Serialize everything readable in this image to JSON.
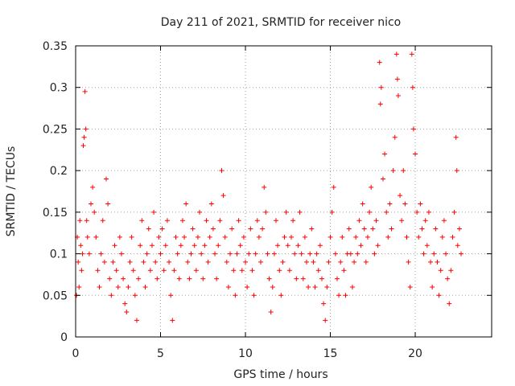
{
  "chart_data": {
    "type": "scatter",
    "title": "Day 211 of 2021, SRMTID for receiver nico",
    "xlabel": "GPS time / hours",
    "ylabel": "SRMTID / TECUs",
    "xlim": [
      0,
      24.5
    ],
    "ylim": [
      0,
      0.35
    ],
    "xticks": [
      0,
      5,
      10,
      15,
      20
    ],
    "xtick_labels": [
      "0",
      "5",
      "10",
      "15",
      "20"
    ],
    "yticks": [
      0,
      0.05,
      0.1,
      0.15,
      0.2,
      0.25,
      0.3,
      0.35
    ],
    "ytick_labels": [
      "0",
      "0.05",
      "0.1",
      "0.15",
      "0.2",
      "0.25",
      "0.3",
      "0.35"
    ],
    "grid": true,
    "marker": "+",
    "color": "#ff0000",
    "series": [
      {
        "name": "SRMTID",
        "points": [
          [
            0.05,
            0.05
          ],
          [
            0.1,
            0.12
          ],
          [
            0.15,
            0.09
          ],
          [
            0.2,
            0.06
          ],
          [
            0.25,
            0.14
          ],
          [
            0.3,
            0.11
          ],
          [
            0.35,
            0.08
          ],
          [
            0.4,
            0.1
          ],
          [
            0.45,
            0.23
          ],
          [
            0.5,
            0.24
          ],
          [
            0.55,
            0.295
          ],
          [
            0.6,
            0.25
          ],
          [
            0.65,
            0.14
          ],
          [
            0.7,
            0.12
          ],
          [
            0.8,
            0.1
          ],
          [
            0.9,
            0.16
          ],
          [
            1.0,
            0.18
          ],
          [
            1.1,
            0.15
          ],
          [
            1.2,
            0.12
          ],
          [
            1.3,
            0.08
          ],
          [
            1.4,
            0.06
          ],
          [
            1.5,
            0.1
          ],
          [
            1.6,
            0.14
          ],
          [
            1.7,
            0.09
          ],
          [
            1.8,
            0.19
          ],
          [
            1.9,
            0.16
          ],
          [
            2.0,
            0.07
          ],
          [
            2.1,
            0.05
          ],
          [
            2.2,
            0.09
          ],
          [
            2.3,
            0.11
          ],
          [
            2.4,
            0.08
          ],
          [
            2.5,
            0.06
          ],
          [
            2.6,
            0.12
          ],
          [
            2.7,
            0.1
          ],
          [
            2.8,
            0.07
          ],
          [
            2.9,
            0.04
          ],
          [
            3.0,
            0.03
          ],
          [
            3.1,
            0.06
          ],
          [
            3.2,
            0.09
          ],
          [
            3.3,
            0.12
          ],
          [
            3.4,
            0.08
          ],
          [
            3.5,
            0.05
          ],
          [
            3.6,
            0.02
          ],
          [
            3.7,
            0.07
          ],
          [
            3.8,
            0.11
          ],
          [
            3.9,
            0.14
          ],
          [
            4.0,
            0.09
          ],
          [
            4.1,
            0.06
          ],
          [
            4.2,
            0.1
          ],
          [
            4.3,
            0.13
          ],
          [
            4.4,
            0.08
          ],
          [
            4.5,
            0.11
          ],
          [
            4.6,
            0.15
          ],
          [
            4.7,
            0.09
          ],
          [
            4.8,
            0.07
          ],
          [
            4.9,
            0.12
          ],
          [
            5.0,
            0.1
          ],
          [
            5.1,
            0.13
          ],
          [
            5.2,
            0.08
          ],
          [
            5.3,
            0.11
          ],
          [
            5.4,
            0.14
          ],
          [
            5.5,
            0.09
          ],
          [
            5.6,
            0.05
          ],
          [
            5.7,
            0.02
          ],
          [
            5.8,
            0.08
          ],
          [
            5.9,
            0.12
          ],
          [
            6.0,
            0.1
          ],
          [
            6.1,
            0.07
          ],
          [
            6.2,
            0.11
          ],
          [
            6.3,
            0.14
          ],
          [
            6.4,
            0.12
          ],
          [
            6.5,
            0.16
          ],
          [
            6.6,
            0.09
          ],
          [
            6.7,
            0.07
          ],
          [
            6.8,
            0.1
          ],
          [
            6.9,
            0.13
          ],
          [
            7.0,
            0.11
          ],
          [
            7.1,
            0.08
          ],
          [
            7.2,
            0.12
          ],
          [
            7.3,
            0.15
          ],
          [
            7.4,
            0.1
          ],
          [
            7.5,
            0.07
          ],
          [
            7.6,
            0.11
          ],
          [
            7.7,
            0.14
          ],
          [
            7.8,
            0.09
          ],
          [
            7.9,
            0.12
          ],
          [
            8.0,
            0.16
          ],
          [
            8.1,
            0.13
          ],
          [
            8.2,
            0.1
          ],
          [
            8.3,
            0.07
          ],
          [
            8.4,
            0.11
          ],
          [
            8.5,
            0.14
          ],
          [
            8.6,
            0.2
          ],
          [
            8.7,
            0.17
          ],
          [
            8.8,
            0.12
          ],
          [
            8.9,
            0.09
          ],
          [
            9.0,
            0.06
          ],
          [
            9.1,
            0.1
          ],
          [
            9.2,
            0.13
          ],
          [
            9.3,
            0.08
          ],
          [
            9.4,
            0.05
          ],
          [
            9.5,
            0.1
          ],
          [
            9.6,
            0.14
          ],
          [
            9.7,
            0.11
          ],
          [
            9.8,
            0.08
          ],
          [
            9.9,
            0.12
          ],
          [
            10.0,
            0.09
          ],
          [
            10.1,
            0.06
          ],
          [
            10.2,
            0.1
          ],
          [
            10.3,
            0.13
          ],
          [
            10.4,
            0.08
          ],
          [
            10.5,
            0.05
          ],
          [
            10.6,
            0.1
          ],
          [
            10.7,
            0.14
          ],
          [
            10.8,
            0.12
          ],
          [
            10.9,
            0.09
          ],
          [
            11.0,
            0.13
          ],
          [
            11.1,
            0.18
          ],
          [
            11.2,
            0.15
          ],
          [
            11.3,
            0.1
          ],
          [
            11.4,
            0.07
          ],
          [
            11.5,
            0.03
          ],
          [
            11.6,
            0.06
          ],
          [
            11.7,
            0.1
          ],
          [
            11.8,
            0.14
          ],
          [
            11.9,
            0.11
          ],
          [
            12.0,
            0.08
          ],
          [
            12.1,
            0.05
          ],
          [
            12.2,
            0.09
          ],
          [
            12.3,
            0.12
          ],
          [
            12.4,
            0.15
          ],
          [
            12.5,
            0.11
          ],
          [
            12.6,
            0.08
          ],
          [
            12.7,
            0.12
          ],
          [
            12.8,
            0.14
          ],
          [
            12.9,
            0.1
          ],
          [
            13.0,
            0.07
          ],
          [
            13.1,
            0.11
          ],
          [
            13.2,
            0.15
          ],
          [
            13.3,
            0.1
          ],
          [
            13.4,
            0.07
          ],
          [
            13.5,
            0.12
          ],
          [
            13.6,
            0.09
          ],
          [
            13.7,
            0.06
          ],
          [
            13.8,
            0.1
          ],
          [
            13.9,
            0.13
          ],
          [
            14.0,
            0.09
          ],
          [
            14.1,
            0.06
          ],
          [
            14.2,
            0.1
          ],
          [
            14.3,
            0.08
          ],
          [
            14.4,
            0.11
          ],
          [
            14.5,
            0.07
          ],
          [
            14.6,
            0.04
          ],
          [
            14.7,
            0.02
          ],
          [
            14.8,
            0.06
          ],
          [
            14.9,
            0.09
          ],
          [
            15.0,
            0.12
          ],
          [
            15.1,
            0.15
          ],
          [
            15.2,
            0.18
          ],
          [
            15.3,
            0.1
          ],
          [
            15.4,
            0.07
          ],
          [
            15.5,
            0.05
          ],
          [
            15.6,
            0.09
          ],
          [
            15.7,
            0.12
          ],
          [
            15.8,
            0.08
          ],
          [
            15.9,
            0.05
          ],
          [
            16.0,
            0.1
          ],
          [
            16.1,
            0.13
          ],
          [
            16.2,
            0.1
          ],
          [
            16.3,
            0.06
          ],
          [
            16.4,
            0.09
          ],
          [
            16.5,
            0.12
          ],
          [
            16.6,
            0.1
          ],
          [
            16.7,
            0.14
          ],
          [
            16.8,
            0.11
          ],
          [
            16.9,
            0.16
          ],
          [
            17.0,
            0.13
          ],
          [
            17.1,
            0.09
          ],
          [
            17.2,
            0.12
          ],
          [
            17.3,
            0.15
          ],
          [
            17.4,
            0.18
          ],
          [
            17.5,
            0.13
          ],
          [
            17.6,
            0.1
          ],
          [
            17.7,
            0.14
          ],
          [
            17.8,
            0.11
          ],
          [
            17.9,
            0.33
          ],
          [
            17.95,
            0.28
          ],
          [
            18.0,
            0.3
          ],
          [
            18.1,
            0.19
          ],
          [
            18.2,
            0.22
          ],
          [
            18.3,
            0.15
          ],
          [
            18.4,
            0.12
          ],
          [
            18.5,
            0.16
          ],
          [
            18.6,
            0.13
          ],
          [
            18.7,
            0.2
          ],
          [
            18.8,
            0.24
          ],
          [
            18.9,
            0.34
          ],
          [
            18.95,
            0.31
          ],
          [
            19.0,
            0.29
          ],
          [
            19.1,
            0.17
          ],
          [
            19.2,
            0.14
          ],
          [
            19.3,
            0.2
          ],
          [
            19.4,
            0.16
          ],
          [
            19.5,
            0.12
          ],
          [
            19.6,
            0.09
          ],
          [
            19.7,
            0.06
          ],
          [
            19.8,
            0.34
          ],
          [
            19.85,
            0.3
          ],
          [
            19.9,
            0.25
          ],
          [
            20.0,
            0.22
          ],
          [
            20.1,
            0.15
          ],
          [
            20.2,
            0.12
          ],
          [
            20.3,
            0.16
          ],
          [
            20.4,
            0.13
          ],
          [
            20.5,
            0.1
          ],
          [
            20.6,
            0.14
          ],
          [
            20.7,
            0.11
          ],
          [
            20.8,
            0.15
          ],
          [
            20.9,
            0.09
          ],
          [
            21.0,
            0.06
          ],
          [
            21.1,
            0.1
          ],
          [
            21.2,
            0.13
          ],
          [
            21.3,
            0.09
          ],
          [
            21.4,
            0.05
          ],
          [
            21.5,
            0.08
          ],
          [
            21.6,
            0.12
          ],
          [
            21.7,
            0.14
          ],
          [
            21.8,
            0.1
          ],
          [
            21.9,
            0.07
          ],
          [
            22.0,
            0.04
          ],
          [
            22.1,
            0.08
          ],
          [
            22.2,
            0.12
          ],
          [
            22.3,
            0.15
          ],
          [
            22.4,
            0.24
          ],
          [
            22.45,
            0.2
          ],
          [
            22.5,
            0.11
          ],
          [
            22.6,
            0.13
          ],
          [
            22.7,
            0.1
          ]
        ]
      }
    ]
  }
}
